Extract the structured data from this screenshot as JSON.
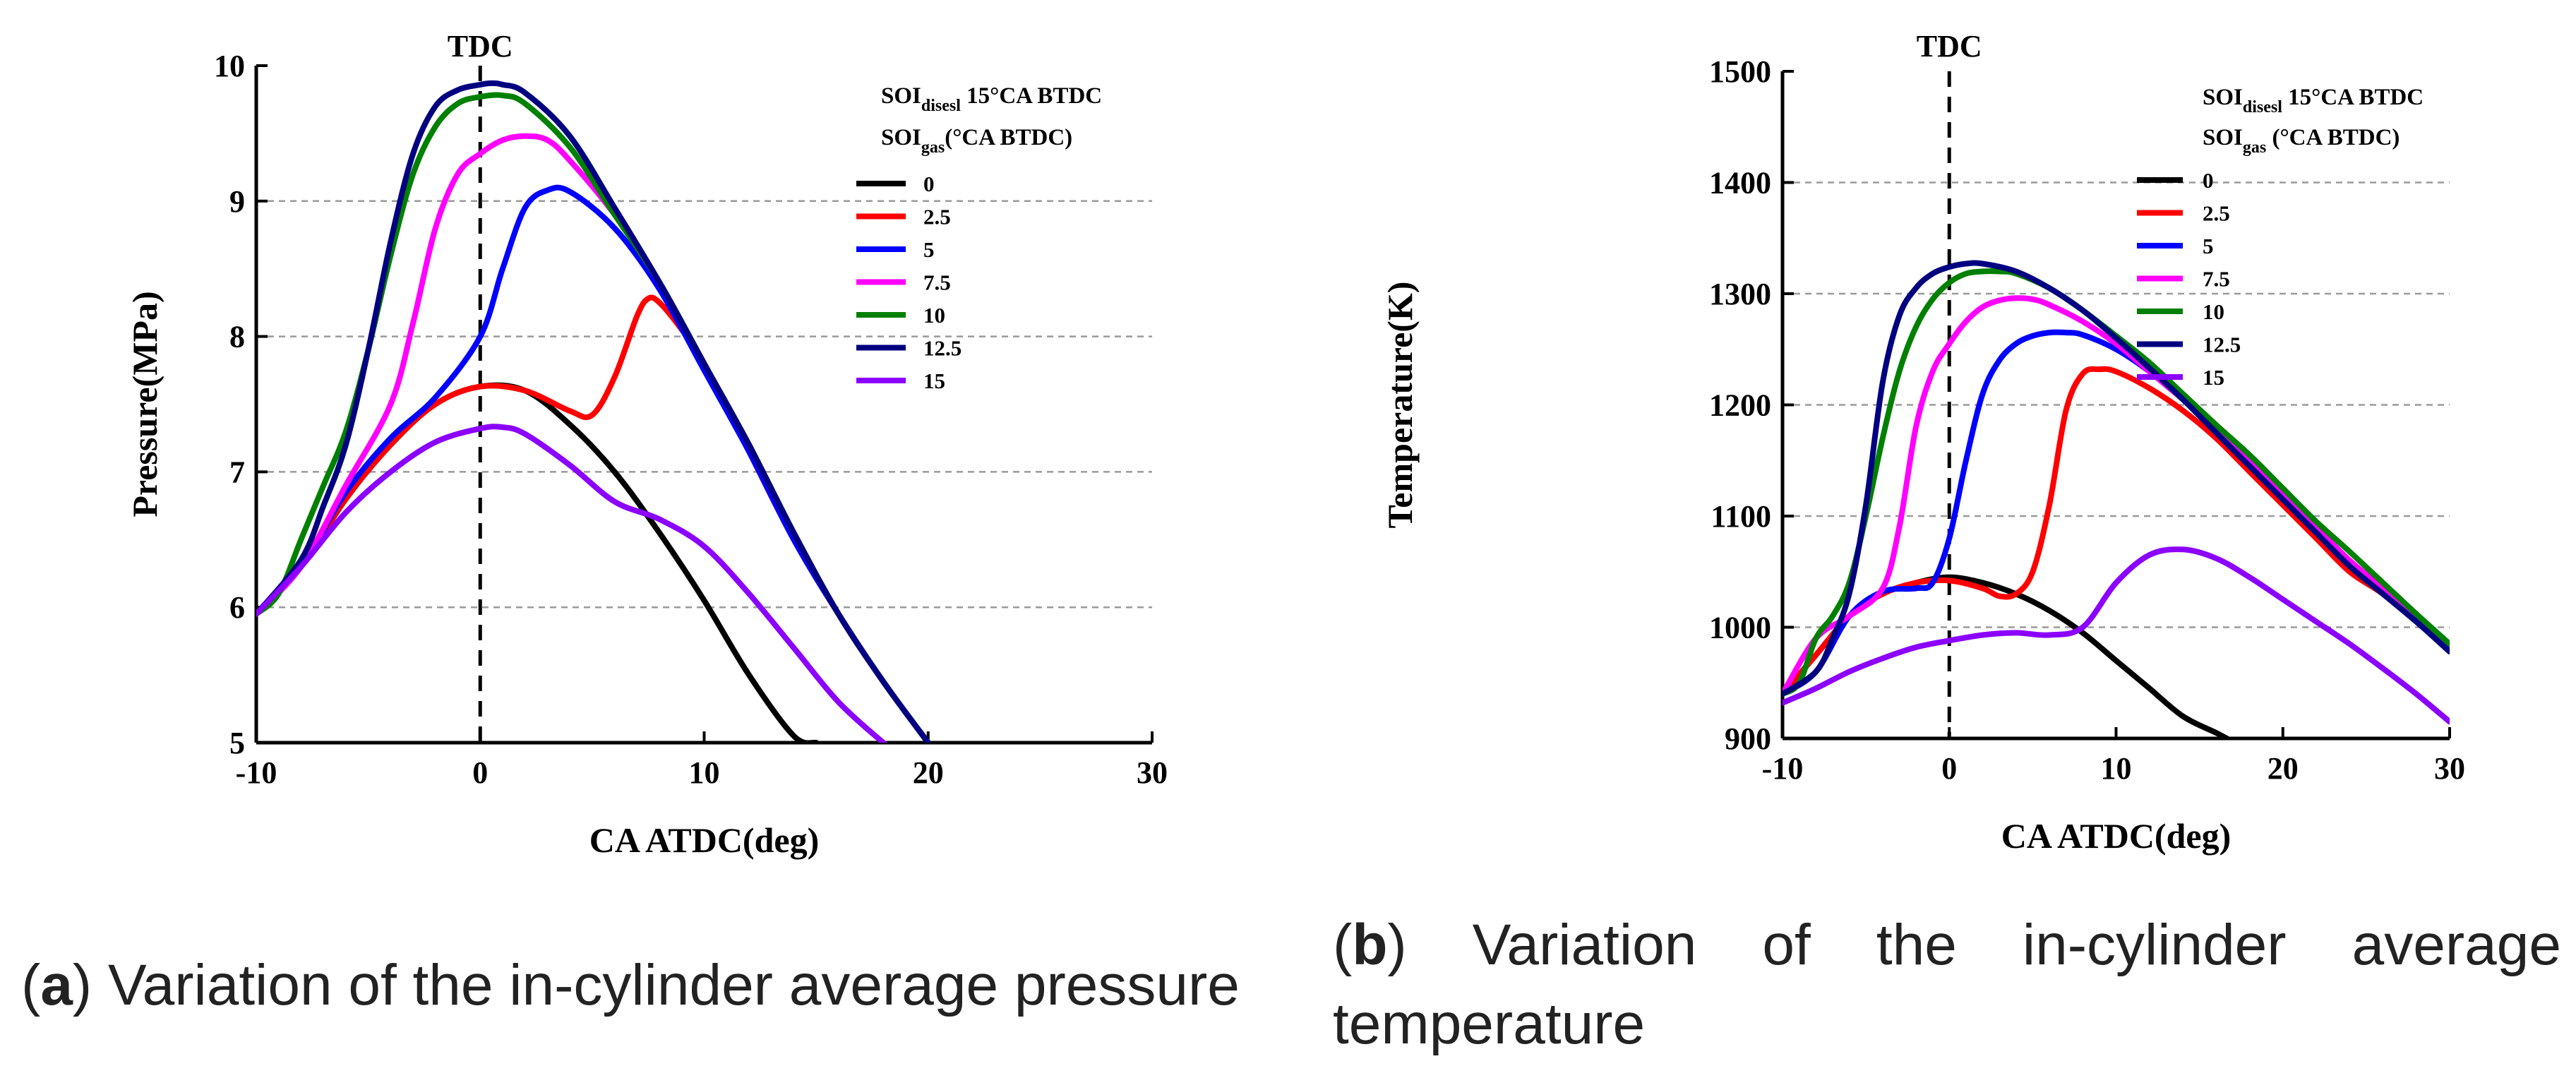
{
  "figure": {
    "colors": {
      "0": "#000000",
      "2.5": "#ff0000",
      "5": "#0000ff",
      "7.5": "#ff00ff",
      "10": "#008000",
      "12.5": "#000080",
      "15": "#8b00ff"
    },
    "captions": {
      "a": {
        "letter": "a",
        "text": "Variation of the in-cylinder average pressure"
      },
      "b": {
        "letter": "b",
        "line1": "Variation of the in-cylinder average",
        "line2": "temperature"
      }
    }
  },
  "chart_data": [
    {
      "type": "line",
      "title": "",
      "xlabel": "CA ATDC(deg)",
      "ylabel": "Pressure(MPa)",
      "xlim": [
        -10,
        30
      ],
      "ylim": [
        5,
        10
      ],
      "xticks": [
        -10,
        0,
        10,
        20,
        30
      ],
      "yticks": [
        5,
        6,
        7,
        8,
        9,
        10
      ],
      "grid": "horizontal-dashed",
      "annotation": "TDC",
      "legend": {
        "line1_main": "SOI",
        "line1_sub": "disesl",
        "line1_rest": " 15°CA BTDC",
        "line2_main": "SOI",
        "line2_sub": "gas",
        "line2_rest": "(°CA BTDC)"
      },
      "series": [
        {
          "name": "0",
          "x": [
            -10,
            -8,
            -6,
            -4,
            -2,
            0,
            2,
            4,
            6,
            8,
            10,
            12,
            14,
            15
          ],
          "y": [
            5.95,
            6.3,
            6.8,
            7.2,
            7.5,
            7.63,
            7.6,
            7.35,
            7.0,
            6.55,
            6.05,
            5.5,
            5.05,
            5.0
          ]
        },
        {
          "name": "2.5",
          "x": [
            -10,
            -8,
            -6,
            -4,
            -2,
            0,
            2,
            4,
            5,
            6,
            7,
            7.5,
            8,
            9,
            10,
            12,
            14,
            16,
            18,
            20
          ],
          "y": [
            5.95,
            6.3,
            6.8,
            7.2,
            7.5,
            7.63,
            7.6,
            7.45,
            7.42,
            7.7,
            8.15,
            8.28,
            8.25,
            8.05,
            7.8,
            7.15,
            6.5,
            5.95,
            5.45,
            5.0
          ]
        },
        {
          "name": "5",
          "x": [
            -10,
            -8,
            -6,
            -4,
            -2,
            0,
            1,
            2,
            3,
            4,
            6,
            8,
            10,
            12,
            14,
            16,
            18,
            20
          ],
          "y": [
            5.95,
            6.3,
            6.85,
            7.25,
            7.55,
            8.0,
            8.5,
            8.95,
            9.08,
            9.07,
            8.8,
            8.35,
            7.75,
            7.15,
            6.5,
            5.95,
            5.45,
            5.0
          ]
        },
        {
          "name": "7.5",
          "x": [
            -10,
            -8,
            -6,
            -4,
            -3,
            -2,
            -1,
            0,
            1,
            2,
            3,
            4,
            6,
            8,
            10,
            12,
            14,
            16,
            18,
            20
          ],
          "y": [
            5.95,
            6.3,
            6.9,
            7.5,
            8.1,
            8.8,
            9.2,
            9.35,
            9.45,
            9.48,
            9.45,
            9.3,
            8.9,
            8.4,
            7.8,
            7.2,
            6.55,
            5.95,
            5.45,
            5.0
          ]
        },
        {
          "name": "10",
          "x": [
            -10,
            -9,
            -8,
            -7,
            -6,
            -5,
            -4,
            -3,
            -2,
            -1,
            0,
            1,
            2,
            4,
            6,
            8,
            10,
            12,
            14,
            16,
            18,
            20
          ],
          "y": [
            5.95,
            6.1,
            6.5,
            6.9,
            7.3,
            7.9,
            8.6,
            9.2,
            9.55,
            9.72,
            9.77,
            9.78,
            9.72,
            9.4,
            8.9,
            8.4,
            7.8,
            7.2,
            6.55,
            5.95,
            5.45,
            5.0
          ]
        },
        {
          "name": "12.5",
          "x": [
            -10,
            -8,
            -7,
            -6,
            -5,
            -4,
            -3,
            -2,
            -1,
            0,
            0.5,
            1,
            2,
            4,
            6,
            8,
            10,
            12,
            14,
            16,
            18,
            20
          ],
          "y": [
            5.95,
            6.35,
            6.75,
            7.2,
            7.9,
            8.7,
            9.35,
            9.7,
            9.82,
            9.86,
            9.87,
            9.86,
            9.8,
            9.48,
            8.95,
            8.4,
            7.8,
            7.2,
            6.55,
            5.95,
            5.45,
            5.0
          ]
        },
        {
          "name": "15",
          "x": [
            -10,
            -8,
            -6,
            -4,
            -2,
            0,
            1,
            2,
            4,
            6,
            8,
            10,
            12,
            14,
            16,
            18,
            18.5
          ],
          "y": [
            5.95,
            6.3,
            6.7,
            7.0,
            7.22,
            7.32,
            7.33,
            7.28,
            7.05,
            6.78,
            6.65,
            6.45,
            6.1,
            5.7,
            5.3,
            5.0,
            4.95
          ]
        }
      ]
    },
    {
      "type": "line",
      "title": "",
      "xlabel": "CA ATDC(deg)",
      "ylabel": "Temperature(K)",
      "xlim": [
        -10,
        30
      ],
      "ylim": [
        900,
        1500
      ],
      "xticks": [
        -10,
        0,
        10,
        20,
        30
      ],
      "yticks": [
        900,
        1000,
        1100,
        1200,
        1300,
        1400,
        1500
      ],
      "grid": "horizontal-dashed",
      "annotation": "TDC",
      "legend": {
        "line1_main": "SOI",
        "line1_sub": "disesl",
        "line1_rest": " 15°CA BTDC",
        "line2_main": "SOI",
        "line2_sub": "gas",
        "line2_rest": " (°CA BTDC)"
      },
      "series": [
        {
          "name": "0",
          "x": [
            -10,
            -8,
            -6,
            -4,
            -2,
            0,
            2,
            4,
            6,
            8,
            10,
            12,
            14,
            16,
            17
          ],
          "y": [
            940,
            975,
            1010,
            1030,
            1040,
            1045,
            1040,
            1030,
            1015,
            995,
            970,
            945,
            920,
            905,
            897
          ]
        },
        {
          "name": "2.5",
          "x": [
            -10,
            -8,
            -6,
            -4,
            -2,
            0,
            2,
            3,
            4,
            5,
            6,
            7,
            8,
            9,
            10,
            12,
            14,
            16,
            18,
            20,
            22,
            24,
            26,
            28,
            30
          ],
          "y": [
            940,
            975,
            1010,
            1030,
            1040,
            1042,
            1035,
            1028,
            1030,
            1050,
            1110,
            1195,
            1228,
            1232,
            1230,
            1215,
            1195,
            1170,
            1140,
            1110,
            1080,
            1050,
            1030,
            1005,
            980
          ]
        },
        {
          "name": "5",
          "x": [
            -10,
            -8,
            -6,
            -4,
            -2,
            -1,
            0,
            1,
            2,
            3,
            4,
            5,
            6,
            7,
            8,
            10,
            12,
            14,
            16,
            18,
            20,
            22,
            24,
            26,
            28,
            30
          ],
          "y": [
            940,
            960,
            1010,
            1032,
            1035,
            1040,
            1080,
            1150,
            1210,
            1240,
            1255,
            1262,
            1265,
            1265,
            1263,
            1250,
            1230,
            1205,
            1180,
            1150,
            1120,
            1090,
            1060,
            1035,
            1010,
            980
          ]
        },
        {
          "name": "7.5",
          "x": [
            -10,
            -8,
            -6,
            -4,
            -3,
            -2,
            -1,
            0,
            1,
            2,
            3,
            4,
            5,
            6,
            8,
            10,
            12,
            14,
            16,
            18,
            20,
            22,
            24,
            26,
            28,
            30
          ],
          "y": [
            940,
            990,
            1010,
            1035,
            1090,
            1180,
            1230,
            1255,
            1275,
            1288,
            1294,
            1296,
            1295,
            1290,
            1275,
            1255,
            1230,
            1205,
            1180,
            1150,
            1120,
            1090,
            1060,
            1035,
            1010,
            985
          ]
        },
        {
          "name": "10",
          "x": [
            -10,
            -9,
            -8,
            -7,
            -6,
            -5,
            -4,
            -3,
            -2,
            -1,
            0,
            1,
            2,
            3,
            4,
            6,
            8,
            10,
            12,
            14,
            16,
            18,
            20,
            22,
            24,
            26,
            28,
            30
          ],
          "y": [
            940,
            950,
            990,
            1010,
            1040,
            1100,
            1170,
            1230,
            1270,
            1295,
            1310,
            1318,
            1320,
            1320,
            1318,
            1305,
            1285,
            1262,
            1238,
            1210,
            1182,
            1155,
            1125,
            1095,
            1068,
            1040,
            1012,
            985
          ]
        },
        {
          "name": "12.5",
          "x": [
            -10,
            -8,
            -7,
            -6,
            -5,
            -4,
            -3,
            -2,
            -1,
            0,
            1,
            2,
            4,
            6,
            8,
            10,
            12,
            14,
            16,
            18,
            20,
            22,
            24,
            26,
            28,
            30
          ],
          "y": [
            940,
            960,
            990,
            1030,
            1110,
            1220,
            1280,
            1305,
            1318,
            1324,
            1327,
            1327,
            1320,
            1305,
            1285,
            1260,
            1233,
            1205,
            1175,
            1145,
            1115,
            1085,
            1055,
            1030,
            1005,
            978
          ]
        },
        {
          "name": "15",
          "x": [
            -10,
            -8,
            -6,
            -4,
            -2,
            0,
            2,
            4,
            6,
            8,
            10,
            12,
            14,
            16,
            18,
            20,
            22,
            24,
            26,
            28,
            30
          ],
          "y": [
            932,
            945,
            960,
            972,
            982,
            988,
            993,
            995,
            993,
            1000,
            1040,
            1065,
            1070,
            1062,
            1045,
            1025,
            1005,
            985,
            963,
            940,
            915
          ]
        }
      ]
    }
  ]
}
